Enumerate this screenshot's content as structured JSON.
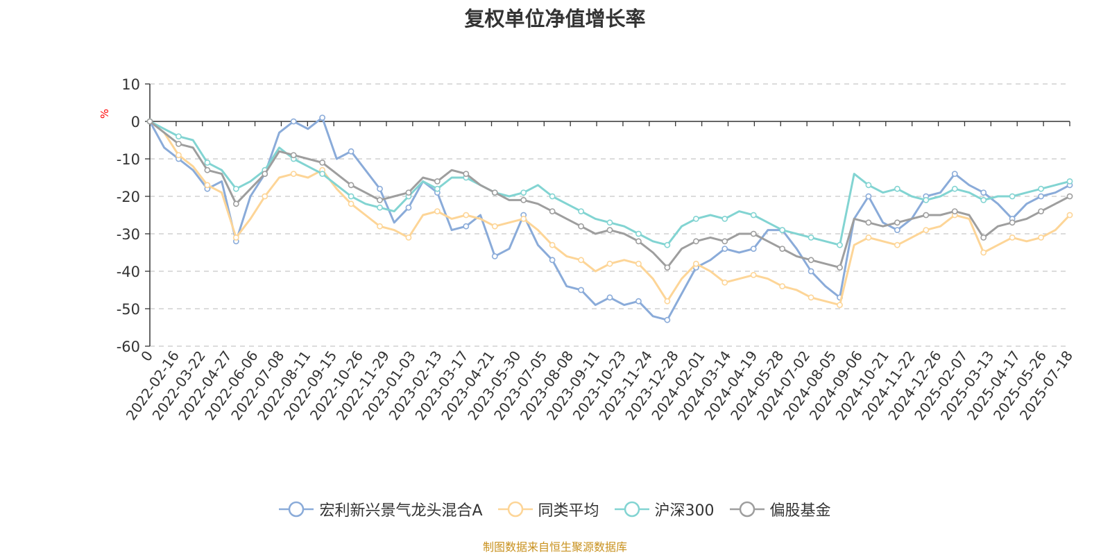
{
  "chart_data": {
    "type": "line",
    "title": "复权单位净值增长率",
    "ylabel": "%",
    "ylim": [
      -60,
      10
    ],
    "yticks": [
      10,
      0,
      -10,
      -20,
      -30,
      -40,
      -50,
      -60
    ],
    "grid": true,
    "legend_position": "bottom",
    "x_tick_labels": [
      "0",
      "2022-02-16",
      "2022-03-22",
      "2022-04-27",
      "2022-06-06",
      "2022-07-08",
      "2022-08-11",
      "2022-09-15",
      "2022-10-26",
      "2022-11-29",
      "2023-01-03",
      "2023-02-13",
      "2023-03-17",
      "2023-04-21",
      "2023-05-30",
      "2023-07-05",
      "2023-08-08",
      "2023-09-11",
      "2023-10-23",
      "2023-11-24",
      "2023-12-28",
      "2024-02-01",
      "2024-03-14",
      "2024-04-19",
      "2024-05-28",
      "2024-07-02",
      "2024-08-05",
      "2024-09-06",
      "2024-10-21",
      "2024-11-22",
      "2024-12-26",
      "2025-02-07",
      "2025-03-13",
      "2025-04-17",
      "2025-05-26",
      "2025-07-18"
    ],
    "series": [
      {
        "name": "宏利新兴景气龙头混合A",
        "color": "#8aabd9",
        "values": [
          0,
          -7,
          -10,
          -13,
          -18,
          -16,
          -32,
          -20,
          -14,
          -3,
          0,
          -2,
          1,
          -10,
          -8,
          -13,
          -18,
          -27,
          -23,
          -16,
          -19,
          -29,
          -28,
          -25,
          -36,
          -34,
          -25,
          -33,
          -37,
          -44,
          -45,
          -49,
          -47,
          -49,
          -48,
          -52,
          -53,
          -46,
          -39,
          -37,
          -34,
          -35,
          -34,
          -29,
          -29,
          -34,
          -40,
          -44,
          -47,
          -26,
          -20,
          -27,
          -29,
          -26,
          -20,
          -19,
          -14,
          -17,
          -19,
          -22,
          -26,
          -22,
          -20,
          -19,
          -17
        ]
      },
      {
        "name": "同类平均",
        "color": "#fdd597",
        "values": [
          0,
          -3,
          -9,
          -12,
          -17,
          -19,
          -31,
          -26,
          -20,
          -15,
          -14,
          -15,
          -13,
          -18,
          -22,
          -25,
          -28,
          -29,
          -31,
          -25,
          -24,
          -26,
          -25,
          -26,
          -28,
          -27,
          -26,
          -29,
          -33,
          -36,
          -37,
          -40,
          -38,
          -37,
          -38,
          -42,
          -48,
          -42,
          -38,
          -40,
          -43,
          -42,
          -41,
          -42,
          -44,
          -45,
          -47,
          -48,
          -49,
          -33,
          -31,
          -32,
          -33,
          -31,
          -29,
          -28,
          -25,
          -26,
          -35,
          -33,
          -31,
          -32,
          -31,
          -29,
          -25
        ]
      },
      {
        "name": "沪深300",
        "color": "#82d4d2",
        "values": [
          0,
          -2,
          -4,
          -5,
          -11,
          -13,
          -18,
          -16,
          -13,
          -7,
          -10,
          -12,
          -14,
          -17,
          -20,
          -22,
          -23,
          -24,
          -20,
          -16,
          -18,
          -15,
          -15,
          -17,
          -19,
          -20,
          -19,
          -17,
          -20,
          -22,
          -24,
          -26,
          -27,
          -28,
          -30,
          -32,
          -33,
          -28,
          -26,
          -25,
          -26,
          -24,
          -25,
          -27,
          -29,
          -30,
          -31,
          -32,
          -33,
          -14,
          -17,
          -19,
          -18,
          -20,
          -21,
          -20,
          -18,
          -19,
          -21,
          -20,
          -20,
          -19,
          -18,
          -17,
          -16
        ]
      },
      {
        "name": "偏股基金",
        "color": "#9e9e9e",
        "values": [
          0,
          -3,
          -6,
          -7,
          -13,
          -14,
          -22,
          -18,
          -14,
          -8,
          -9,
          -10,
          -11,
          -14,
          -17,
          -19,
          -21,
          -20,
          -19,
          -15,
          -16,
          -13,
          -14,
          -17,
          -19,
          -21,
          -21,
          -22,
          -24,
          -26,
          -28,
          -30,
          -29,
          -30,
          -32,
          -35,
          -39,
          -34,
          -32,
          -31,
          -32,
          -30,
          -30,
          -32,
          -34,
          -36,
          -37,
          -38,
          -39,
          -26,
          -27,
          -28,
          -27,
          -26,
          -25,
          -25,
          -24,
          -25,
          -31,
          -28,
          -27,
          -26,
          -24,
          -22,
          -20
        ]
      }
    ]
  },
  "source_note": "制图数据来自恒生聚源数据库"
}
